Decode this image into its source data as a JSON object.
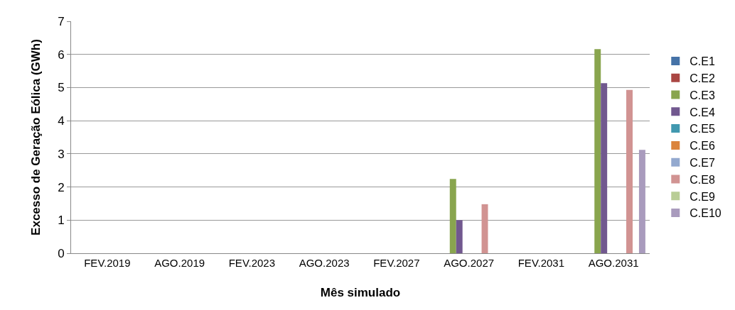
{
  "chart_data": {
    "type": "bar",
    "xlabel": "Mês simulado",
    "ylabel": "Excesso de Geração Eólica (GWh)",
    "categories": [
      "FEV.2019",
      "AGO.2019",
      "FEV.2023",
      "AGO.2023",
      "FEV.2027",
      "AGO.2027",
      "FEV.2031",
      "AGO.2031"
    ],
    "series": [
      {
        "name": "C.E1",
        "color": "#4572a7",
        "values": [
          0,
          0,
          0,
          0,
          0,
          0,
          0,
          0
        ]
      },
      {
        "name": "C.E2",
        "color": "#aa4643",
        "values": [
          0,
          0,
          0,
          0,
          0,
          0,
          0,
          0
        ]
      },
      {
        "name": "C.E3",
        "color": "#89a54e",
        "values": [
          0,
          0,
          0,
          0,
          0,
          2.24,
          0,
          6.16
        ]
      },
      {
        "name": "C.E4",
        "color": "#71588f",
        "values": [
          0,
          0,
          0,
          0,
          0,
          1.0,
          0,
          5.13
        ]
      },
      {
        "name": "C.E5",
        "color": "#4198af",
        "values": [
          0,
          0,
          0,
          0,
          0,
          0,
          0,
          0
        ]
      },
      {
        "name": "C.E6",
        "color": "#db843d",
        "values": [
          0,
          0,
          0,
          0,
          0,
          0,
          0,
          0
        ]
      },
      {
        "name": "C.E7",
        "color": "#93a9cf",
        "values": [
          0,
          0,
          0,
          0,
          0,
          0,
          0,
          0
        ]
      },
      {
        "name": "C.E8",
        "color": "#d19392",
        "values": [
          0,
          0,
          0,
          0,
          0,
          1.48,
          0,
          4.93
        ]
      },
      {
        "name": "C.E9",
        "color": "#b9cd96",
        "values": [
          0,
          0,
          0,
          0,
          0,
          0,
          0,
          0
        ]
      },
      {
        "name": "C.E10",
        "color": "#a99bbd",
        "values": [
          0,
          0,
          0,
          0,
          0,
          0,
          0,
          3.12
        ]
      }
    ],
    "ylim": [
      0,
      7
    ],
    "yticks": [
      0,
      1,
      2,
      3,
      4,
      5,
      6,
      7
    ],
    "grid": "y",
    "legend": "right"
  }
}
